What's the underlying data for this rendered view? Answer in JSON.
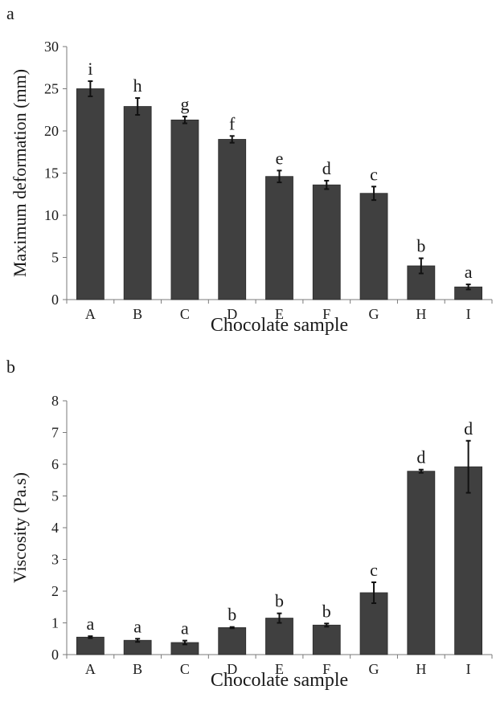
{
  "chart_data": [
    {
      "panel_label": "a",
      "type": "bar",
      "categories": [
        "A",
        "B",
        "C",
        "D",
        "E",
        "F",
        "G",
        "H",
        "I"
      ],
      "values": [
        25.0,
        22.9,
        21.3,
        19.0,
        14.6,
        13.6,
        12.6,
        4.0,
        1.5
      ],
      "errors": [
        0.9,
        1.0,
        0.4,
        0.4,
        0.7,
        0.5,
        0.8,
        0.9,
        0.3
      ],
      "letters": [
        "i",
        "h",
        "g",
        "f",
        "e",
        "d",
        "c",
        "b",
        "a"
      ],
      "ylabel": "Maximum deformation (mm)",
      "xlabel": "Chocolate sample",
      "ylim": [
        0,
        30
      ],
      "yticks": [
        "0",
        "5",
        "10",
        "15",
        "20",
        "25",
        "30"
      ],
      "bar_color": "#404040",
      "grid": false
    },
    {
      "panel_label": "b",
      "type": "bar",
      "categories": [
        "A",
        "B",
        "C",
        "D",
        "E",
        "F",
        "G",
        "H",
        "I"
      ],
      "values": [
        0.55,
        0.45,
        0.38,
        0.85,
        1.15,
        0.93,
        1.95,
        5.78,
        5.92
      ],
      "errors": [
        0.03,
        0.05,
        0.06,
        0.02,
        0.15,
        0.05,
        0.33,
        0.05,
        0.82
      ],
      "letters": [
        "a",
        "a",
        "a",
        "b",
        "b",
        "b",
        "c",
        "d",
        "d"
      ],
      "ylabel": "Viscosity (Pa.s)",
      "xlabel": "Chocolate sample",
      "ylim": [
        0,
        8
      ],
      "yticks": [
        "0",
        "1",
        "2",
        "3",
        "4",
        "5",
        "6",
        "7",
        "8"
      ],
      "bar_color": "#404040",
      "grid": false
    }
  ]
}
